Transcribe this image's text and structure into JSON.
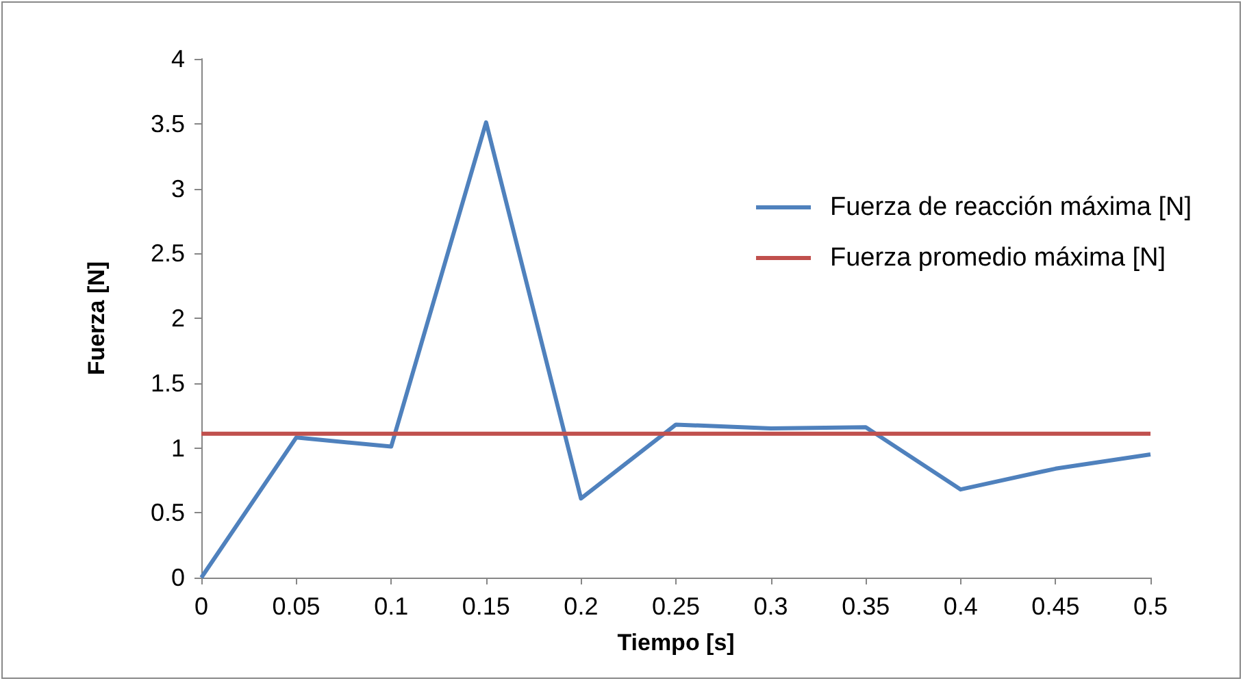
{
  "chart_data": {
    "type": "line",
    "xlabel": "Tiempo [s]",
    "ylabel": "Fuerza [N]",
    "categories": [
      "0",
      "0.05",
      "0.1",
      "0.15",
      "0.2",
      "0.25",
      "0.3",
      "0.35",
      "0.4",
      "0.45",
      "0.5"
    ],
    "series": [
      {
        "name": "Fuerza de reacción máxima [N]",
        "color": "#4f81bd",
        "values": [
          0,
          1.08,
          1.01,
          3.51,
          0.61,
          1.18,
          1.15,
          1.16,
          0.68,
          0.84,
          0.95
        ]
      },
      {
        "name": "Fuerza promedio máxima [N]",
        "color": "#c0504d",
        "values": [
          1.11,
          1.11,
          1.11,
          1.11,
          1.11,
          1.11,
          1.11,
          1.11,
          1.11,
          1.11,
          1.11
        ]
      }
    ],
    "ylim": [
      0,
      4
    ],
    "yticks": [
      0,
      0.5,
      1,
      1.5,
      2,
      2.5,
      3,
      3.5,
      4
    ],
    "grid": false,
    "legend": "right",
    "marker": "none",
    "line_style": "solid"
  }
}
